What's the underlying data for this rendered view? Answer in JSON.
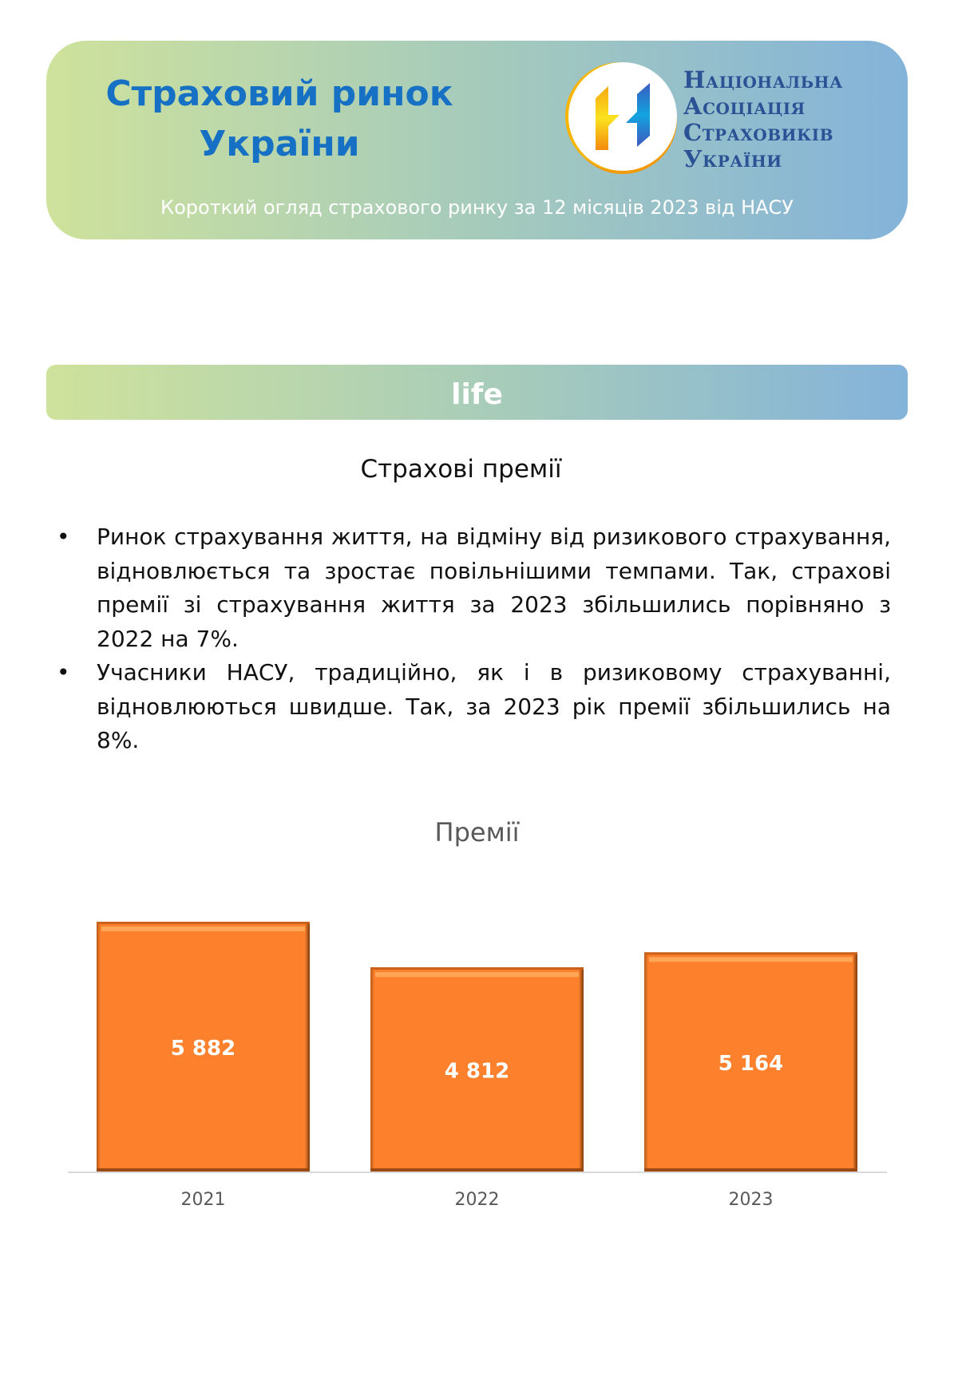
{
  "header": {
    "title_line1": "Страховий ринок",
    "title_line2": "України",
    "org_name": [
      "Національна",
      "Асоціація",
      "Страховиків",
      "України"
    ],
    "subtitle": "Короткий огляд страхового ринку за 12 місяців 2023 від НАСУ"
  },
  "section_bar": {
    "label": "life"
  },
  "section_heading": "Страхові премії",
  "bullets": [
    "Ринок страхування життя, на відміну від ризикового страхування, відновлюється та зростає повільнішими темпами. Так, страхові премії зі страхування життя за 2023 збільшились порівняно з 2022 на 7%.",
    "Учасники НАСУ, традиційно, як і в ризиковому страхуванні, відновлюються швидше. Так, за 2023 рік премії збільшились на 8%."
  ],
  "chart_data": {
    "type": "bar",
    "title": "Премії",
    "categories": [
      "2021",
      "2022",
      "2023"
    ],
    "values": [
      5882,
      4812,
      5164
    ],
    "data_labels": [
      "5 882",
      "4 812",
      "5 164"
    ],
    "xlabel": "",
    "ylabel": "",
    "ylim": [
      0,
      5882
    ],
    "grid": false,
    "bar_color": "#fd812c",
    "label_color": "#ffffff"
  },
  "colors": {
    "title": "#1670c4",
    "org": "#2a5294",
    "gradient_start": "#cfe29c",
    "gradient_end": "#84b3da"
  }
}
